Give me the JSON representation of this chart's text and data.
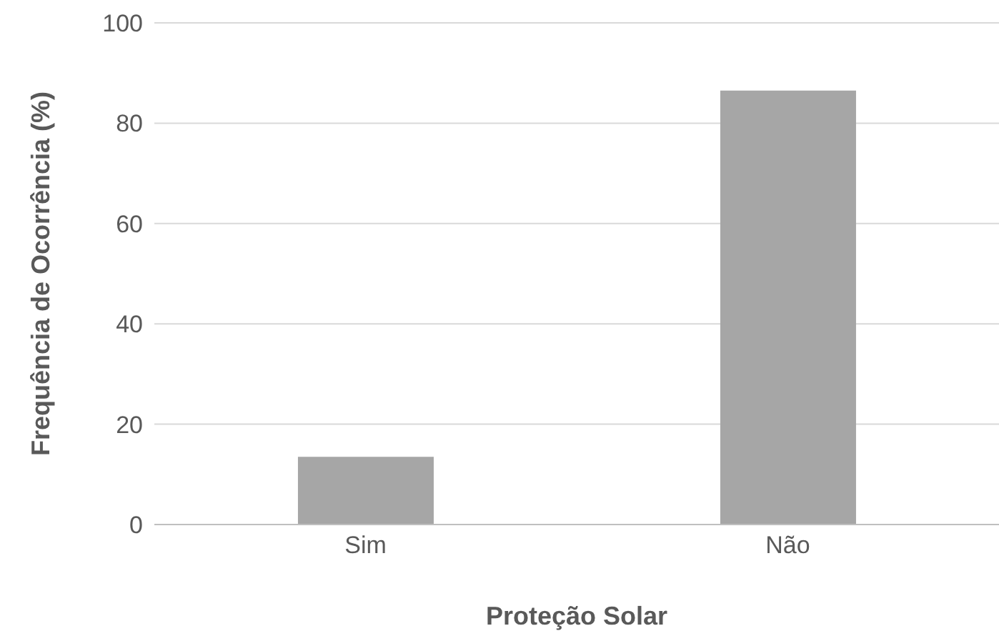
{
  "chart_data": {
    "type": "bar",
    "xlabel": "Proteção Solar",
    "ylabel": "Frequência de Ocorrência (%)",
    "categories": [
      "Sim",
      "Não"
    ],
    "values": [
      13.5,
      86.5
    ],
    "color": "#a6a6a6",
    "ylim": [
      0,
      100
    ],
    "yticks": [
      0,
      20,
      40,
      60,
      80,
      100
    ],
    "grid": "y"
  }
}
